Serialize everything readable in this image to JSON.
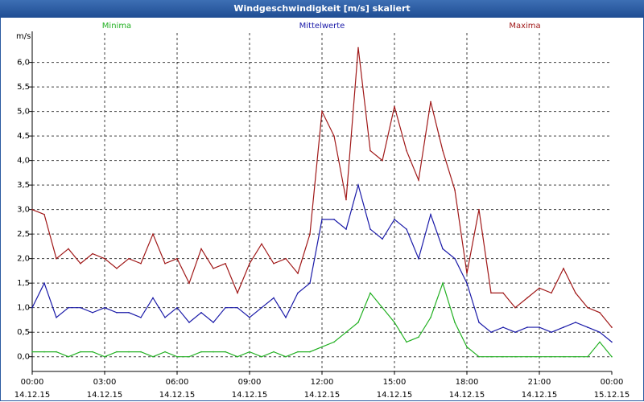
{
  "window": {
    "title": "Windgeschwindigkeit [m/s] skaliert"
  },
  "colors": {
    "minima": "#22b022",
    "mittelwerte": "#1a1aa8",
    "maxima": "#a01818",
    "grid": "#000000",
    "axis": "#000000"
  },
  "chart_data": {
    "type": "line",
    "title": "Windgeschwindigkeit [m/s] skaliert",
    "ylabel": "m/s",
    "ylim": [
      -0.3,
      6.6
    ],
    "yticks": [
      0.0,
      0.5,
      1.0,
      1.5,
      2.0,
      2.5,
      3.0,
      3.5,
      4.0,
      4.5,
      5.0,
      5.5,
      6.0
    ],
    "ytick_labels": [
      "0,0",
      "0,5",
      "1,0",
      "1,5",
      "2,0",
      "2,5",
      "3,0",
      "3,5",
      "4,0",
      "4,5",
      "5,0",
      "5,5",
      "6,0"
    ],
    "xlim": [
      0,
      24
    ],
    "xticks": [
      0,
      3,
      6,
      9,
      12,
      15,
      18,
      21,
      24
    ],
    "xtick_labels": [
      {
        "time": "00:00",
        "date": "14.12.15"
      },
      {
        "time": "03:00",
        "date": "14.12.15"
      },
      {
        "time": "06:00",
        "date": "14.12.15"
      },
      {
        "time": "09:00",
        "date": "14.12.15"
      },
      {
        "time": "12:00",
        "date": "14.12.15"
      },
      {
        "time": "15:00",
        "date": "14.12.15"
      },
      {
        "time": "18:00",
        "date": "14.12.15"
      },
      {
        "time": "21:00",
        "date": "14.12.15"
      },
      {
        "time": "00:00",
        "date": "15.12.15"
      }
    ],
    "grid": true,
    "x": [
      0.0,
      0.5,
      1.0,
      1.5,
      2.0,
      2.5,
      3.0,
      3.5,
      4.0,
      4.5,
      5.0,
      5.5,
      6.0,
      6.5,
      7.0,
      7.5,
      8.0,
      8.5,
      9.0,
      9.5,
      10.0,
      10.5,
      11.0,
      11.5,
      12.0,
      12.5,
      13.0,
      13.5,
      14.0,
      14.5,
      15.0,
      15.5,
      16.0,
      16.5,
      17.0,
      17.5,
      18.0,
      18.5,
      19.0,
      19.5,
      20.0,
      20.5,
      21.0,
      21.5,
      22.0,
      22.5,
      23.0,
      23.5,
      24.0
    ],
    "series": [
      {
        "name": "Minima",
        "color_key": "minima",
        "values": [
          0.1,
          0.1,
          0.1,
          0.0,
          0.1,
          0.1,
          0.0,
          0.1,
          0.1,
          0.1,
          0.0,
          0.1,
          0.0,
          0.0,
          0.1,
          0.1,
          0.1,
          0.0,
          0.1,
          0.0,
          0.1,
          0.0,
          0.1,
          0.1,
          0.2,
          0.3,
          0.5,
          0.7,
          1.3,
          1.0,
          0.7,
          0.3,
          0.4,
          0.8,
          1.5,
          0.7,
          0.2,
          0.0,
          0.0,
          0.0,
          0.0,
          0.0,
          0.0,
          0.0,
          0.0,
          0.0,
          0.0,
          0.3,
          0.0
        ]
      },
      {
        "name": "Mittelwerte",
        "color_key": "mittelwerte",
        "values": [
          1.0,
          1.5,
          0.8,
          1.0,
          1.0,
          0.9,
          1.0,
          0.9,
          0.9,
          0.8,
          1.2,
          0.8,
          1.0,
          0.7,
          0.9,
          0.7,
          1.0,
          1.0,
          0.8,
          1.0,
          1.2,
          0.8,
          1.3,
          1.5,
          2.8,
          2.8,
          2.6,
          3.5,
          2.6,
          2.4,
          2.8,
          2.6,
          2.0,
          2.9,
          2.2,
          2.0,
          1.5,
          0.7,
          0.5,
          0.6,
          0.5,
          0.6,
          0.6,
          0.5,
          0.6,
          0.7,
          0.6,
          0.5,
          0.3
        ]
      },
      {
        "name": "Maxima",
        "color_key": "maxima",
        "values": [
          3.0,
          2.9,
          2.0,
          2.2,
          1.9,
          2.1,
          2.0,
          1.8,
          2.0,
          1.9,
          2.5,
          1.9,
          2.0,
          1.5,
          2.2,
          1.8,
          1.9,
          1.3,
          1.9,
          2.3,
          1.9,
          2.0,
          1.7,
          2.5,
          5.0,
          4.5,
          3.2,
          6.3,
          4.2,
          4.0,
          5.1,
          4.2,
          3.6,
          5.2,
          4.2,
          3.4,
          1.7,
          3.0,
          1.3,
          1.3,
          1.0,
          1.2,
          1.4,
          1.3,
          1.8,
          1.3,
          1.0,
          0.9,
          0.6
        ]
      }
    ]
  }
}
